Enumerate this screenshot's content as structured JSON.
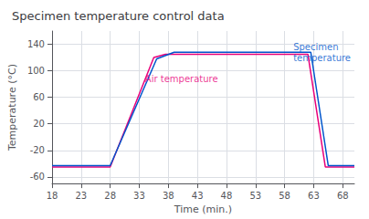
{
  "chart_data": {
    "type": "line",
    "title": "Specimen temperature control data",
    "xlabel": "Time (min.)",
    "ylabel": "Temperature (°C)",
    "xlim": [
      18,
      70
    ],
    "ylim": [
      -70,
      160
    ],
    "xticks": [
      18,
      23,
      28,
      33,
      38,
      43,
      48,
      53,
      58,
      63,
      68
    ],
    "yticks": [
      -60,
      -20,
      20,
      60,
      100,
      140
    ],
    "grid": true,
    "series": [
      {
        "color": "#e8007a",
        "x": [
          18,
          23,
          28,
          35.5,
          37.5,
          55,
          62,
          65,
          67,
          70
        ],
        "values": [
          -45,
          -45,
          -45,
          120,
          125,
          125,
          125,
          -45,
          -45,
          -45
        ]
      },
      {
        "color": "#0055cc",
        "x": [
          18,
          23,
          28,
          36,
          39,
          55,
          62.5,
          65.5,
          67.5,
          70
        ],
        "values": [
          -43,
          -43,
          -43,
          118,
          128,
          128,
          128,
          -43,
          -43,
          -43
        ]
      }
    ],
    "annotations": [
      {
        "text": "Air temperature",
        "x": 34,
        "y": 80,
        "color": "#e8007a"
      },
      {
        "text": "Specimen\ntemperature",
        "x": 59.5,
        "y": 128,
        "color": "#0055cc"
      }
    ]
  }
}
